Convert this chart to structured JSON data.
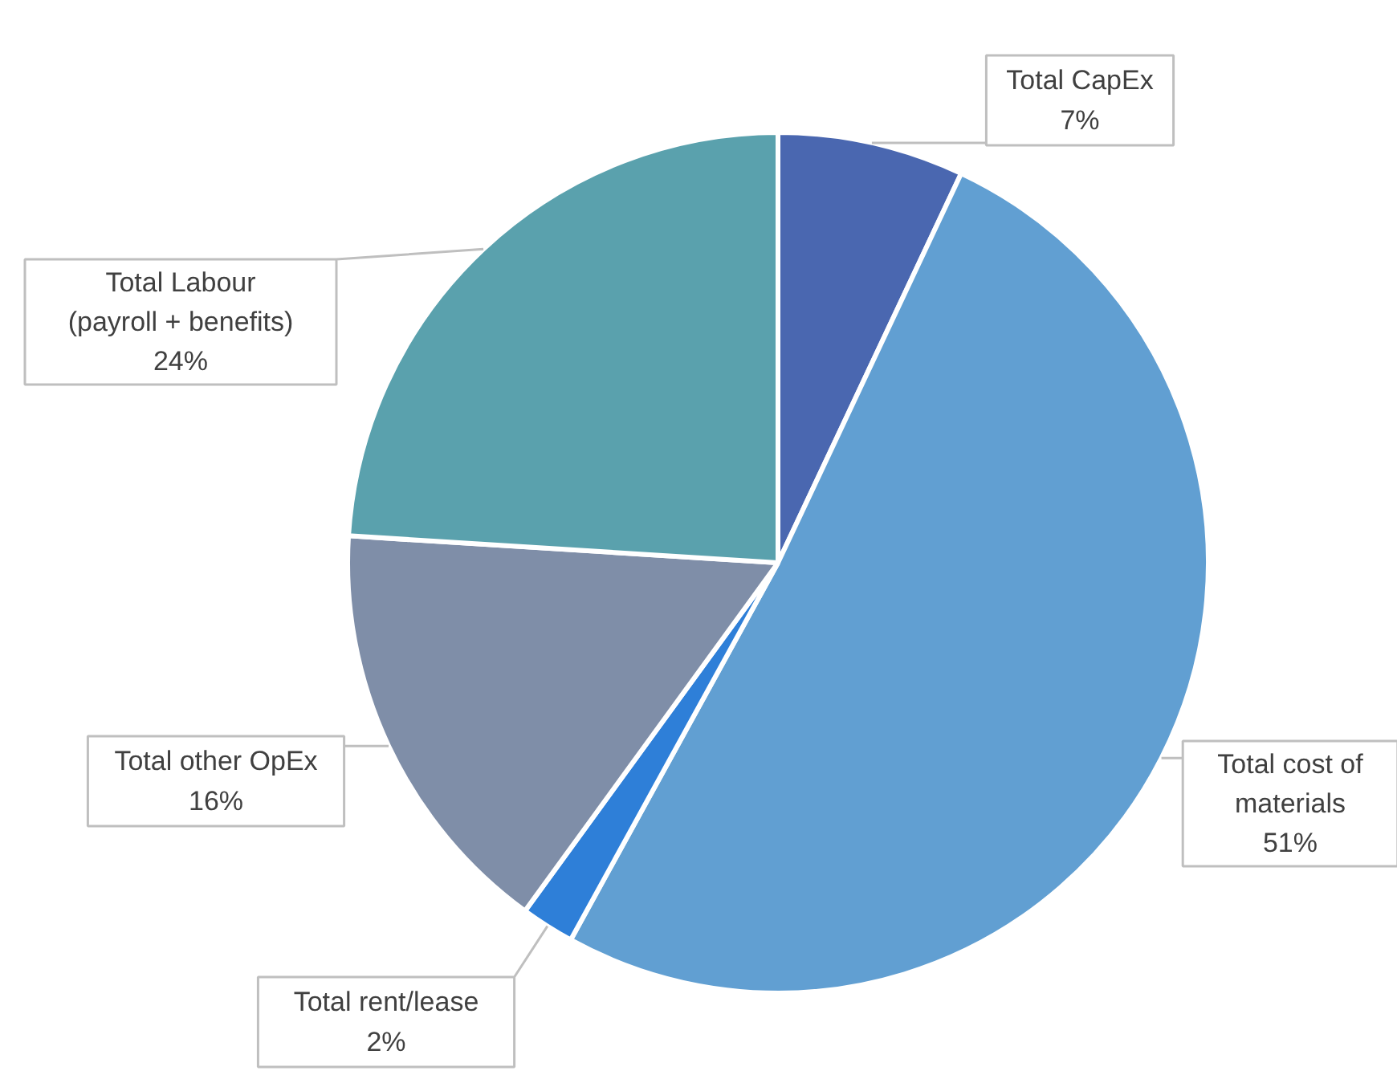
{
  "chart_data": {
    "type": "pie",
    "categories": [
      "Total CapEx",
      "Total cost of\nmaterials",
      "Total rent/lease",
      "Total other OpEx",
      "Total Labour\n(payroll + benefits)"
    ],
    "values": [
      7,
      51,
      2,
      16,
      24
    ],
    "value_labels": [
      "7%",
      "51%",
      "2%",
      "16%",
      "24%"
    ],
    "colors": [
      "#4a67b0",
      "#619fd2",
      "#2e7fd8",
      "#7f8ea8",
      "#5aa1ad"
    ]
  }
}
